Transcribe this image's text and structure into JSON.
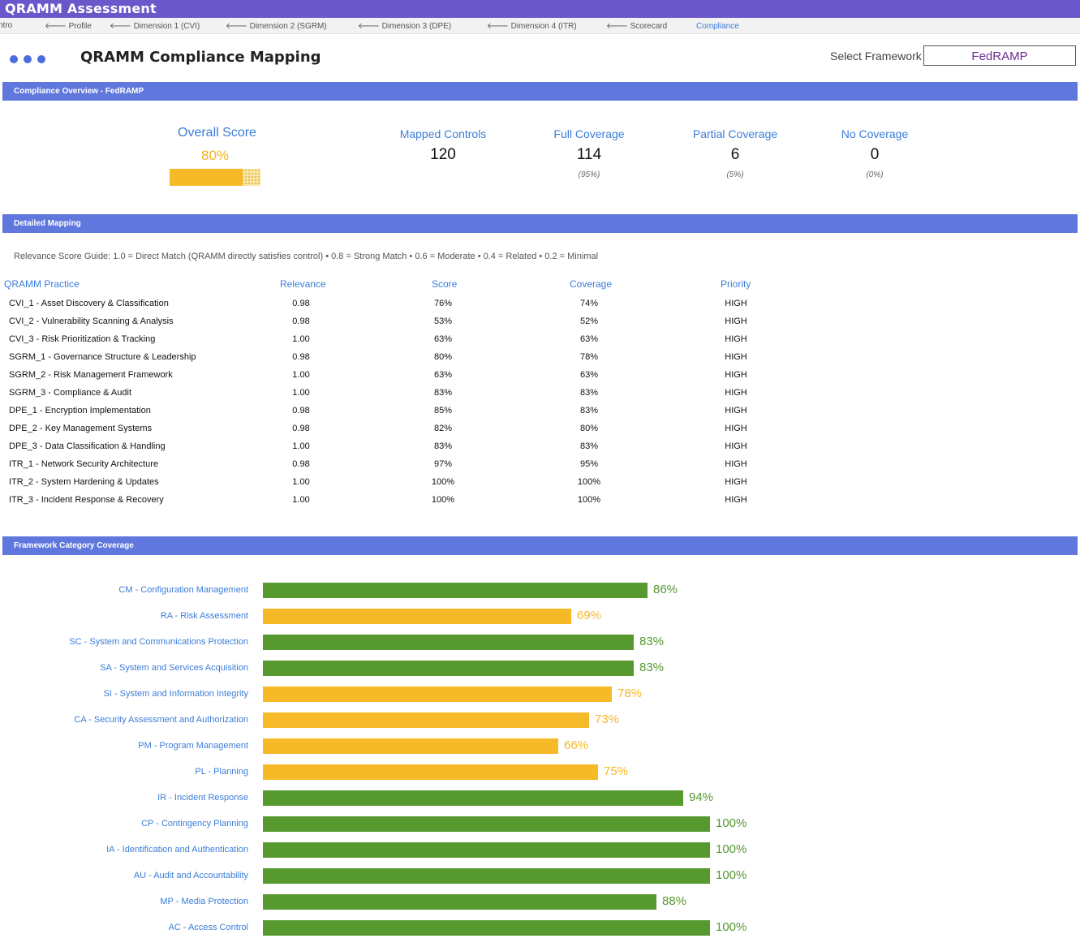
{
  "app": {
    "title": "QRAMM Assessment"
  },
  "tabs": [
    {
      "label": "ntro",
      "active": false
    },
    {
      "label": "🡐 Profile",
      "active": false
    },
    {
      "label": "🡐 Dimension 1 (CVI)",
      "active": false
    },
    {
      "label": "🡐 Dimension 2 (SGRM)",
      "active": false
    },
    {
      "label": "🡐 Dimension 3 (DPE)",
      "active": false
    },
    {
      "label": "🡐 Dimension 4 (ITR)",
      "active": false
    },
    {
      "label": "🡐 Scorecard",
      "active": false
    },
    {
      "label": "Compliance",
      "active": true
    }
  ],
  "header": {
    "title": "QRAMM Compliance Mapping",
    "select_label": "Select Framework",
    "framework": "FedRAMP"
  },
  "overview": {
    "section_title": "Compliance Overview - FedRAMP",
    "overall_label": "Overall Score",
    "overall_value": "80%",
    "overall_fraction": 0.8,
    "metrics": [
      {
        "label": "Mapped Controls",
        "value": "120",
        "sub": ""
      },
      {
        "label": "Full Coverage",
        "value": "114",
        "sub": "(95%)"
      },
      {
        "label": "Partial Coverage",
        "value": "6",
        "sub": "(5%)"
      },
      {
        "label": "No Coverage",
        "value": "0",
        "sub": "(0%)"
      }
    ]
  },
  "mapping": {
    "section_title": "Detailed Mapping",
    "guide": "Relevance Score Guide: 1.0 = Direct Match (QRAMM directly satisfies control)   •   0.8 = Strong Match   •   0.6 = Moderate   •   0.4 = Related   •   0.2 = Minimal",
    "columns": [
      "QRAMM Practice",
      "Relevance",
      "Score",
      "Coverage",
      "Priority"
    ],
    "rows": [
      [
        "CVI_1 - Asset Discovery & Classification",
        "0.98",
        "76%",
        "74%",
        "HIGH"
      ],
      [
        "CVI_2 - Vulnerability Scanning & Analysis",
        "0.98",
        "53%",
        "52%",
        "HIGH"
      ],
      [
        "CVI_3 - Risk Prioritization & Tracking",
        "1.00",
        "63%",
        "63%",
        "HIGH"
      ],
      [
        "SGRM_1 - Governance Structure & Leadership",
        "0.98",
        "80%",
        "78%",
        "HIGH"
      ],
      [
        "SGRM_2 - Risk Management Framework",
        "1.00",
        "63%",
        "63%",
        "HIGH"
      ],
      [
        "SGRM_3 - Compliance & Audit",
        "1.00",
        "83%",
        "83%",
        "HIGH"
      ],
      [
        "DPE_1 - Encryption Implementation",
        "0.98",
        "85%",
        "83%",
        "HIGH"
      ],
      [
        "DPE_2 - Key Management Systems",
        "0.98",
        "82%",
        "80%",
        "HIGH"
      ],
      [
        "DPE_3 - Data Classification & Handling",
        "1.00",
        "83%",
        "83%",
        "HIGH"
      ],
      [
        "ITR_1 - Network Security Architecture",
        "0.98",
        "97%",
        "95%",
        "HIGH"
      ],
      [
        "ITR_2 - System Hardening & Updates",
        "1.00",
        "100%",
        "100%",
        "HIGH"
      ],
      [
        "ITR_3 - Incident Response & Recovery",
        "1.00",
        "100%",
        "100%",
        "HIGH"
      ]
    ]
  },
  "categories": {
    "section_title": "Framework Category Coverage",
    "colors": {
      "high": "#55992f",
      "medium": "#f6b928"
    },
    "items": [
      {
        "label": "CM - Configuration Management",
        "value": 86,
        "pct": "86%",
        "level": "high"
      },
      {
        "label": "RA - Risk Assessment",
        "value": 69,
        "pct": "69%",
        "level": "medium"
      },
      {
        "label": "SC - System and Communications Protection",
        "value": 83,
        "pct": "83%",
        "level": "high"
      },
      {
        "label": "SA - System and Services Acquisition",
        "value": 83,
        "pct": "83%",
        "level": "high"
      },
      {
        "label": "SI - System and Information Integrity",
        "value": 78,
        "pct": "78%",
        "level": "medium"
      },
      {
        "label": "CA - Security Assessment and Authorization",
        "value": 73,
        "pct": "73%",
        "level": "medium"
      },
      {
        "label": "PM - Program Management",
        "value": 66,
        "pct": "66%",
        "level": "medium"
      },
      {
        "label": "PL - Planning",
        "value": 75,
        "pct": "75%",
        "level": "medium"
      },
      {
        "label": "IR - Incident Response",
        "value": 94,
        "pct": "94%",
        "level": "high"
      },
      {
        "label": "CP - Contingency Planning",
        "value": 100,
        "pct": "100%",
        "level": "high"
      },
      {
        "label": "IA - Identification and Authentication",
        "value": 100,
        "pct": "100%",
        "level": "high"
      },
      {
        "label": "AU - Audit and Accountability",
        "value": 100,
        "pct": "100%",
        "level": "high"
      },
      {
        "label": "MP - Media Protection",
        "value": 88,
        "pct": "88%",
        "level": "high"
      },
      {
        "label": "AC - Access Control",
        "value": 100,
        "pct": "100%",
        "level": "high"
      }
    ]
  }
}
